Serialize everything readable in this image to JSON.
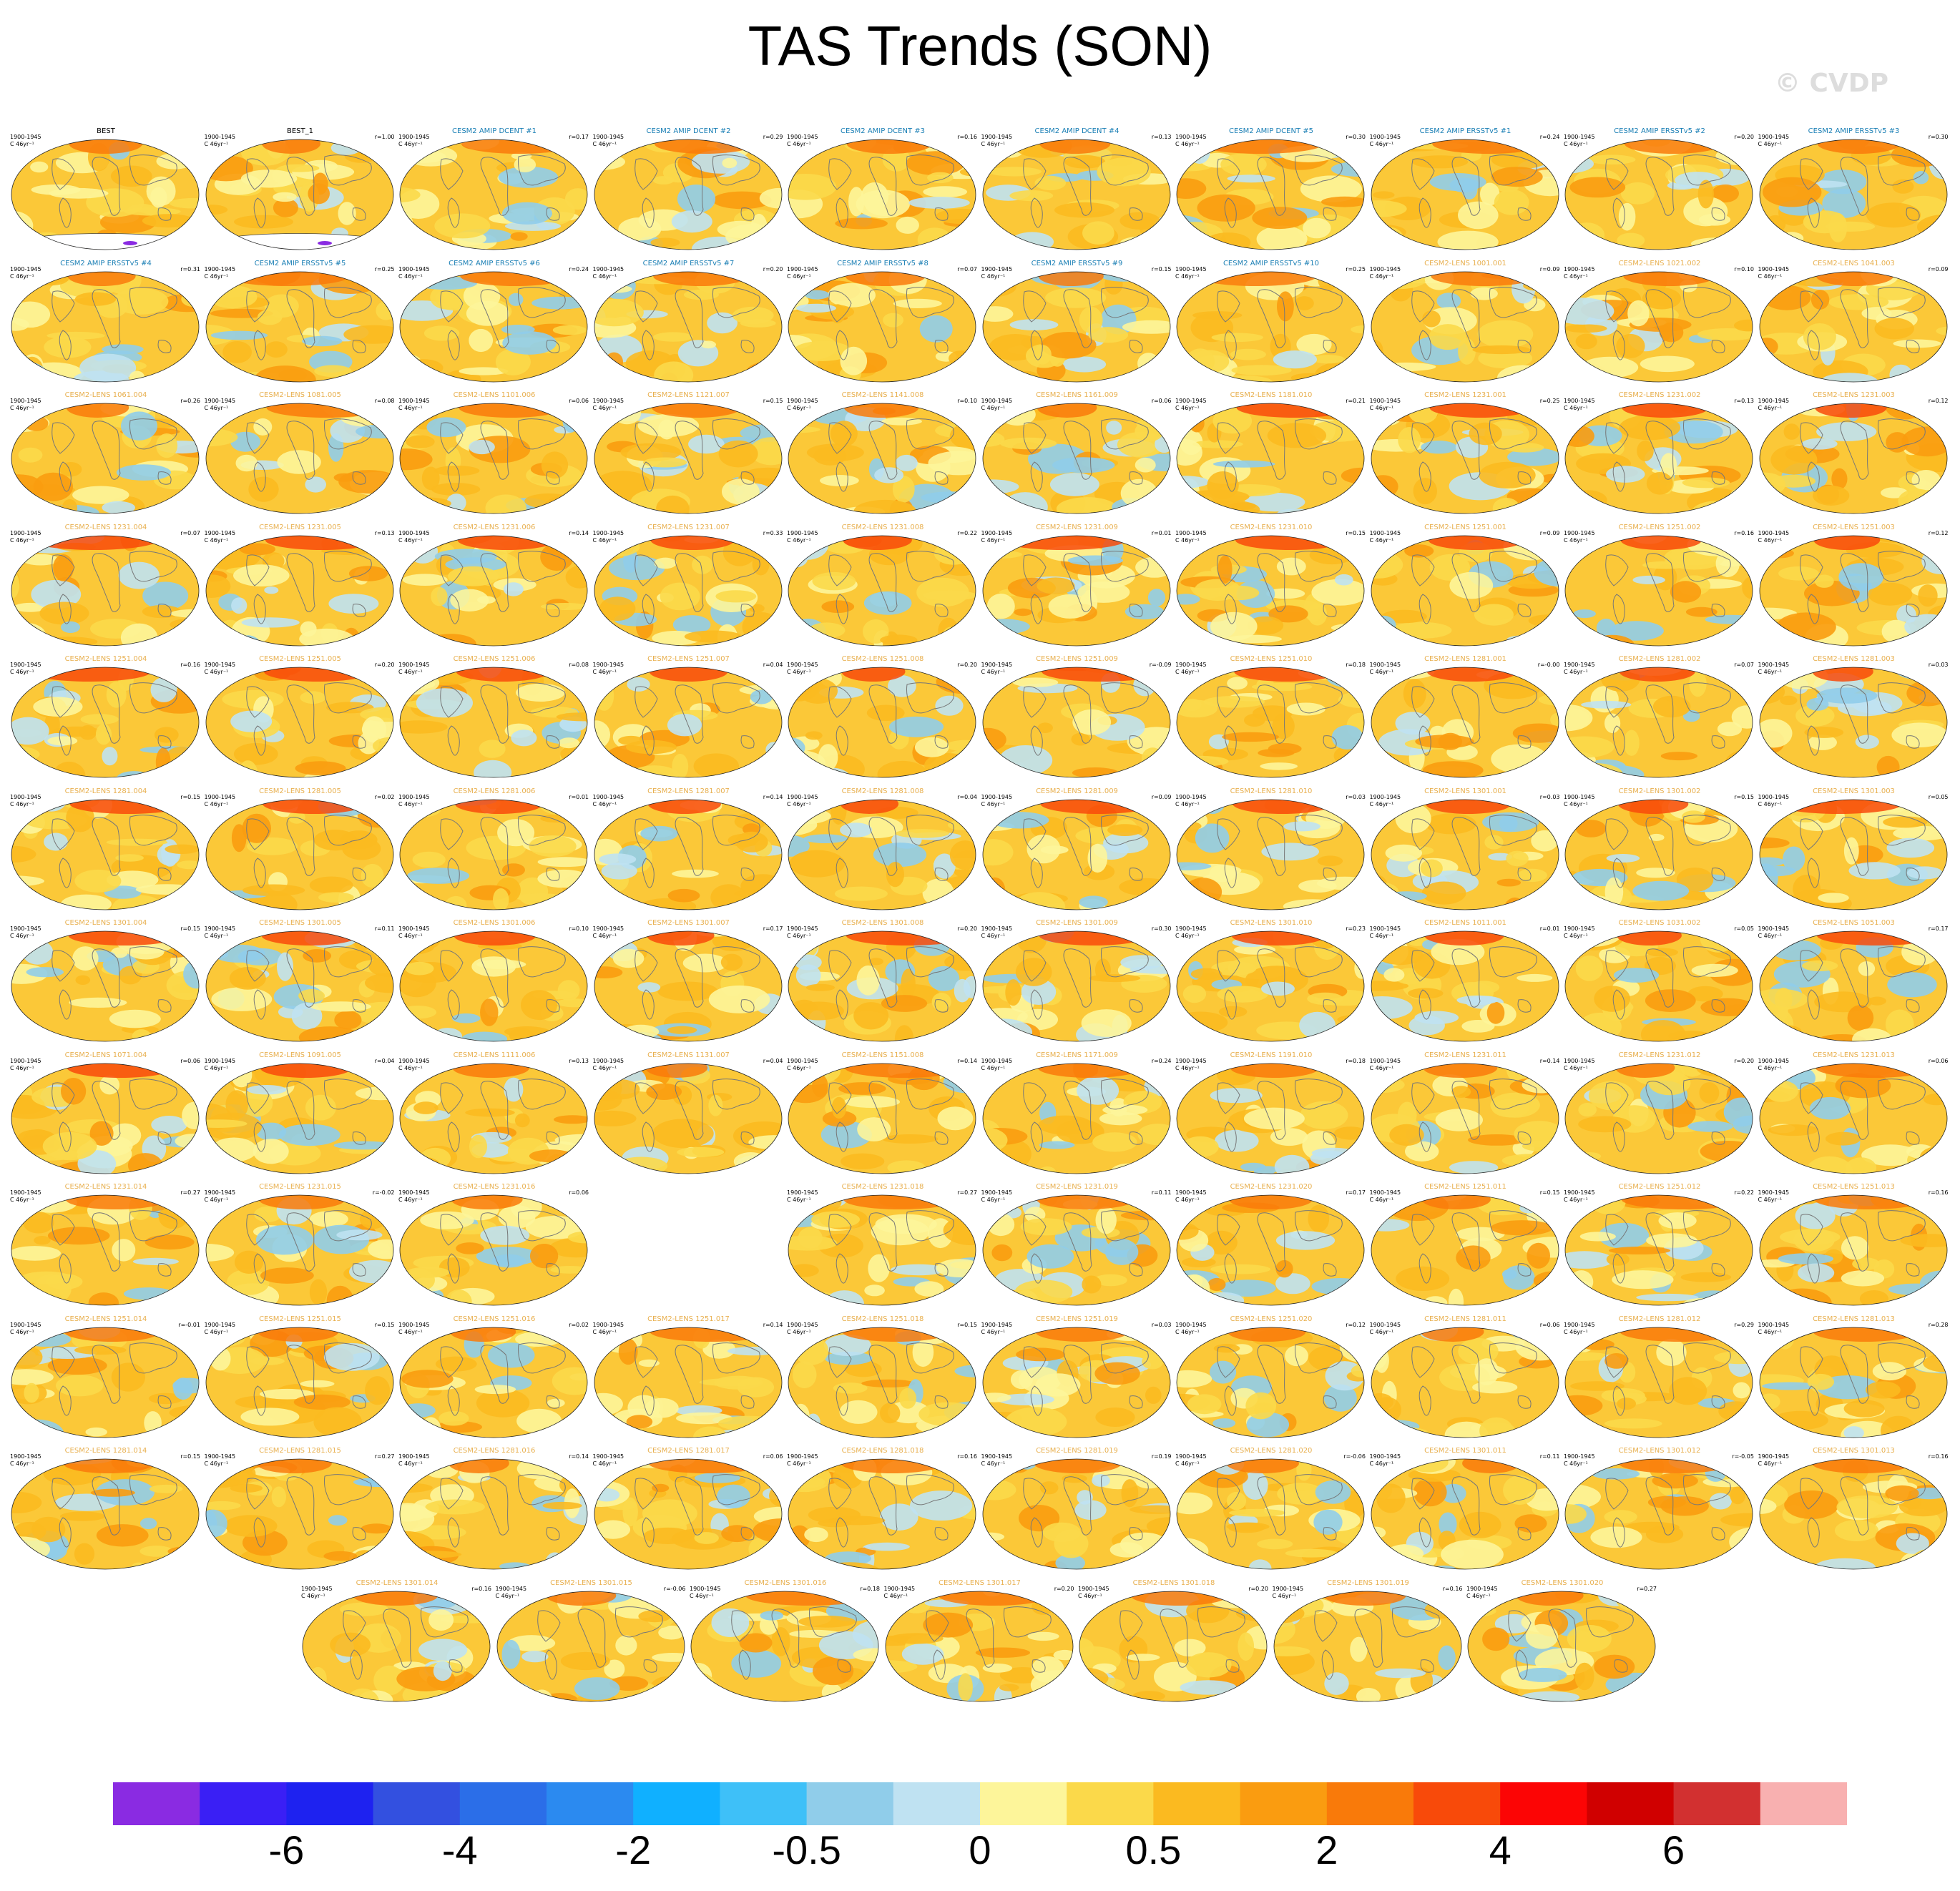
{
  "title": "TAS Trends (SON)",
  "watermark": "© CVDP",
  "panel_dates": "1900-1945\nC 46yr⁻¹",
  "colors": {
    "observation_title": "#000000",
    "amip_title": "#1a7fb5",
    "lens_title": "#e8b050"
  },
  "colorbar": {
    "colors": [
      "#8a2be2",
      "#3a1ff5",
      "#1e22f0",
      "#3350e0",
      "#2b6ee8",
      "#2b8af0",
      "#10b0ff",
      "#3ec0f8",
      "#90cdea",
      "#bfe2f2",
      "#fdf59a",
      "#fbd94a",
      "#fbba20",
      "#fa9c10",
      "#f97a0a",
      "#f84a0a",
      "#fc0505",
      "#d00000",
      "#d23030",
      "#f8b0b0"
    ],
    "tick_labels": [
      "-6",
      "-4",
      "-2",
      "-0.5",
      "0",
      "0.5",
      "2",
      "4",
      "6"
    ],
    "tick_boundary_index": [
      2,
      4,
      6,
      8,
      10,
      12,
      14,
      16,
      18
    ]
  },
  "panels": [
    {
      "title": "BEST",
      "r": "",
      "kind": "obs"
    },
    {
      "title": "BEST_1",
      "r": "r=1.00",
      "kind": "obs"
    },
    {
      "title": "CESM2 AMIP DCENT #1",
      "r": "r=0.17",
      "kind": "amip"
    },
    {
      "title": "CESM2 AMIP DCENT #2",
      "r": "r=0.29",
      "kind": "amip"
    },
    {
      "title": "CESM2 AMIP DCENT #3",
      "r": "r=0.16",
      "kind": "amip"
    },
    {
      "title": "CESM2 AMIP DCENT #4",
      "r": "r=0.13",
      "kind": "amip"
    },
    {
      "title": "CESM2 AMIP DCENT #5",
      "r": "r=0.30",
      "kind": "amip"
    },
    {
      "title": "CESM2 AMIP ERSSTv5 #1",
      "r": "r=0.24",
      "kind": "amip"
    },
    {
      "title": "CESM2 AMIP ERSSTv5 #2",
      "r": "r=0.20",
      "kind": "amip"
    },
    {
      "title": "CESM2 AMIP ERSSTv5 #3",
      "r": "r=0.30",
      "kind": "amip"
    },
    {
      "title": "CESM2 AMIP ERSSTv5 #4",
      "r": "r=0.31",
      "kind": "amip"
    },
    {
      "title": "CESM2 AMIP ERSSTv5 #5",
      "r": "r=0.25",
      "kind": "amip"
    },
    {
      "title": "CESM2 AMIP ERSSTv5 #6",
      "r": "r=0.24",
      "kind": "amip"
    },
    {
      "title": "CESM2 AMIP ERSSTv5 #7",
      "r": "r=0.20",
      "kind": "amip"
    },
    {
      "title": "CESM2 AMIP ERSSTv5 #8",
      "r": "r=0.07",
      "kind": "amip"
    },
    {
      "title": "CESM2 AMIP ERSSTv5 #9",
      "r": "r=0.15",
      "kind": "amip"
    },
    {
      "title": "CESM2 AMIP ERSSTv5 #10",
      "r": "r=0.25",
      "kind": "amip"
    },
    {
      "title": "CESM2-LENS 1001.001",
      "r": "r=0.09",
      "kind": "lens"
    },
    {
      "title": "CESM2-LENS 1021.002",
      "r": "r=0.10",
      "kind": "lens"
    },
    {
      "title": "CESM2-LENS 1041.003",
      "r": "r=0.09",
      "kind": "lens"
    },
    {
      "title": "CESM2-LENS 1061.004",
      "r": "r=0.26",
      "kind": "lens"
    },
    {
      "title": "CESM2-LENS 1081.005",
      "r": "r=0.08",
      "kind": "lens"
    },
    {
      "title": "CESM2-LENS 1101.006",
      "r": "r=0.06",
      "kind": "lens"
    },
    {
      "title": "CESM2-LENS 1121.007",
      "r": "r=0.15",
      "kind": "lens"
    },
    {
      "title": "CESM2-LENS 1141.008",
      "r": "r=0.10",
      "kind": "lens"
    },
    {
      "title": "CESM2-LENS 1161.009",
      "r": "r=0.06",
      "kind": "lens"
    },
    {
      "title": "CESM2-LENS 1181.010",
      "r": "r=0.21",
      "kind": "lens"
    },
    {
      "title": "CESM2-LENS 1231.001",
      "r": "r=0.25",
      "kind": "lens"
    },
    {
      "title": "CESM2-LENS 1231.002",
      "r": "r=0.13",
      "kind": "lens"
    },
    {
      "title": "CESM2-LENS 1231.003",
      "r": "r=0.12",
      "kind": "lens"
    },
    {
      "title": "CESM2-LENS 1231.004",
      "r": "r=0.07",
      "kind": "lens"
    },
    {
      "title": "CESM2-LENS 1231.005",
      "r": "r=0.13",
      "kind": "lens"
    },
    {
      "title": "CESM2-LENS 1231.006",
      "r": "r=0.14",
      "kind": "lens"
    },
    {
      "title": "CESM2-LENS 1231.007",
      "r": "r=0.33",
      "kind": "lens"
    },
    {
      "title": "CESM2-LENS 1231.008",
      "r": "r=0.22",
      "kind": "lens"
    },
    {
      "title": "CESM2-LENS 1231.009",
      "r": "r=0.01",
      "kind": "lens"
    },
    {
      "title": "CESM2-LENS 1231.010",
      "r": "r=0.15",
      "kind": "lens"
    },
    {
      "title": "CESM2-LENS 1251.001",
      "r": "r=0.09",
      "kind": "lens"
    },
    {
      "title": "CESM2-LENS 1251.002",
      "r": "r=0.16",
      "kind": "lens"
    },
    {
      "title": "CESM2-LENS 1251.003",
      "r": "r=0.12",
      "kind": "lens"
    },
    {
      "title": "CESM2-LENS 1251.004",
      "r": "r=0.16",
      "kind": "lens"
    },
    {
      "title": "CESM2-LENS 1251.005",
      "r": "r=0.20",
      "kind": "lens"
    },
    {
      "title": "CESM2-LENS 1251.006",
      "r": "r=0.08",
      "kind": "lens"
    },
    {
      "title": "CESM2-LENS 1251.007",
      "r": "r=0.04",
      "kind": "lens"
    },
    {
      "title": "CESM2-LENS 1251.008",
      "r": "r=0.20",
      "kind": "lens"
    },
    {
      "title": "CESM2-LENS 1251.009",
      "r": "r=-0.09",
      "kind": "lens"
    },
    {
      "title": "CESM2-LENS 1251.010",
      "r": "r=0.18",
      "kind": "lens"
    },
    {
      "title": "CESM2-LENS 1281.001",
      "r": "r=-0.00",
      "kind": "lens"
    },
    {
      "title": "CESM2-LENS 1281.002",
      "r": "r=0.07",
      "kind": "lens"
    },
    {
      "title": "CESM2-LENS 1281.003",
      "r": "r=0.03",
      "kind": "lens"
    },
    {
      "title": "CESM2-LENS 1281.004",
      "r": "r=0.15",
      "kind": "lens"
    },
    {
      "title": "CESM2-LENS 1281.005",
      "r": "r=0.02",
      "kind": "lens"
    },
    {
      "title": "CESM2-LENS 1281.006",
      "r": "r=0.01",
      "kind": "lens"
    },
    {
      "title": "CESM2-LENS 1281.007",
      "r": "r=0.14",
      "kind": "lens"
    },
    {
      "title": "CESM2-LENS 1281.008",
      "r": "r=0.04",
      "kind": "lens"
    },
    {
      "title": "CESM2-LENS 1281.009",
      "r": "r=0.09",
      "kind": "lens"
    },
    {
      "title": "CESM2-LENS 1281.010",
      "r": "r=0.03",
      "kind": "lens"
    },
    {
      "title": "CESM2-LENS 1301.001",
      "r": "r=0.03",
      "kind": "lens"
    },
    {
      "title": "CESM2-LENS 1301.002",
      "r": "r=0.15",
      "kind": "lens"
    },
    {
      "title": "CESM2-LENS 1301.003",
      "r": "r=0.05",
      "kind": "lens"
    },
    {
      "title": "CESM2-LENS 1301.004",
      "r": "r=0.15",
      "kind": "lens"
    },
    {
      "title": "CESM2-LENS 1301.005",
      "r": "r=0.11",
      "kind": "lens"
    },
    {
      "title": "CESM2-LENS 1301.006",
      "r": "r=0.10",
      "kind": "lens"
    },
    {
      "title": "CESM2-LENS 1301.007",
      "r": "r=0.17",
      "kind": "lens"
    },
    {
      "title": "CESM2-LENS 1301.008",
      "r": "r=0.20",
      "kind": "lens"
    },
    {
      "title": "CESM2-LENS 1301.009",
      "r": "r=0.30",
      "kind": "lens"
    },
    {
      "title": "CESM2-LENS 1301.010",
      "r": "r=0.23",
      "kind": "lens"
    },
    {
      "title": "CESM2-LENS 1011.001",
      "r": "r=0.01",
      "kind": "lens"
    },
    {
      "title": "CESM2-LENS 1031.002",
      "r": "r=0.05",
      "kind": "lens"
    },
    {
      "title": "CESM2-LENS 1051.003",
      "r": "r=0.17",
      "kind": "lens"
    },
    {
      "title": "CESM2-LENS 1071.004",
      "r": "r=0.06",
      "kind": "lens"
    },
    {
      "title": "CESM2-LENS 1091.005",
      "r": "r=0.04",
      "kind": "lens"
    },
    {
      "title": "CESM2-LENS 1111.006",
      "r": "r=0.13",
      "kind": "lens"
    },
    {
      "title": "CESM2-LENS 1131.007",
      "r": "r=0.04",
      "kind": "lens"
    },
    {
      "title": "CESM2-LENS 1151.008",
      "r": "r=0.14",
      "kind": "lens"
    },
    {
      "title": "CESM2-LENS 1171.009",
      "r": "r=0.24",
      "kind": "lens"
    },
    {
      "title": "CESM2-LENS 1191.010",
      "r": "r=0.18",
      "kind": "lens"
    },
    {
      "title": "CESM2-LENS 1231.011",
      "r": "r=0.14",
      "kind": "lens"
    },
    {
      "title": "CESM2-LENS 1231.012",
      "r": "r=0.20",
      "kind": "lens"
    },
    {
      "title": "CESM2-LENS 1231.013",
      "r": "r=0.06",
      "kind": "lens"
    },
    {
      "title": "CESM2-LENS 1231.014",
      "r": "r=0.27",
      "kind": "lens"
    },
    {
      "title": "CESM2-LENS 1231.015",
      "r": "r=-0.02",
      "kind": "lens"
    },
    {
      "title": "CESM2-LENS 1231.016",
      "r": "r=0.06",
      "kind": "lens"
    },
    null,
    {
      "title": "CESM2-LENS 1231.018",
      "r": "r=0.27",
      "kind": "lens"
    },
    {
      "title": "CESM2-LENS 1231.019",
      "r": "r=0.11",
      "kind": "lens"
    },
    {
      "title": "CESM2-LENS 1231.020",
      "r": "r=0.17",
      "kind": "lens"
    },
    {
      "title": "CESM2-LENS 1251.011",
      "r": "r=0.15",
      "kind": "lens"
    },
    {
      "title": "CESM2-LENS 1251.012",
      "r": "r=0.22",
      "kind": "lens"
    },
    {
      "title": "CESM2-LENS 1251.013",
      "r": "r=0.16",
      "kind": "lens"
    },
    {
      "title": "CESM2-LENS 1251.014",
      "r": "r=-0.01",
      "kind": "lens"
    },
    {
      "title": "CESM2-LENS 1251.015",
      "r": "r=0.15",
      "kind": "lens"
    },
    {
      "title": "CESM2-LENS 1251.016",
      "r": "r=0.02",
      "kind": "lens"
    },
    {
      "title": "CESM2-LENS 1251.017",
      "r": "r=0.14",
      "kind": "lens"
    },
    {
      "title": "CESM2-LENS 1251.018",
      "r": "r=0.15",
      "kind": "lens"
    },
    {
      "title": "CESM2-LENS 1251.019",
      "r": "r=0.03",
      "kind": "lens"
    },
    {
      "title": "CESM2-LENS 1251.020",
      "r": "r=0.12",
      "kind": "lens"
    },
    {
      "title": "CESM2-LENS 1281.011",
      "r": "r=0.06",
      "kind": "lens"
    },
    {
      "title": "CESM2-LENS 1281.012",
      "r": "r=0.29",
      "kind": "lens"
    },
    {
      "title": "CESM2-LENS 1281.013",
      "r": "r=0.28",
      "kind": "lens"
    },
    {
      "title": "CESM2-LENS 1281.014",
      "r": "r=0.15",
      "kind": "lens"
    },
    {
      "title": "CESM2-LENS 1281.015",
      "r": "r=0.27",
      "kind": "lens"
    },
    {
      "title": "CESM2-LENS 1281.016",
      "r": "r=0.14",
      "kind": "lens"
    },
    {
      "title": "CESM2-LENS 1281.017",
      "r": "r=0.06",
      "kind": "lens"
    },
    {
      "title": "CESM2-LENS 1281.018",
      "r": "r=0.16",
      "kind": "lens"
    },
    {
      "title": "CESM2-LENS 1281.019",
      "r": "r=0.19",
      "kind": "lens"
    },
    {
      "title": "CESM2-LENS 1281.020",
      "r": "r=-0.06",
      "kind": "lens"
    },
    {
      "title": "CESM2-LENS 1301.011",
      "r": "r=0.11",
      "kind": "lens"
    },
    {
      "title": "CESM2-LENS 1301.012",
      "r": "r=-0.05",
      "kind": "lens"
    },
    {
      "title": "CESM2-LENS 1301.013",
      "r": "r=0.16",
      "kind": "lens"
    },
    {
      "title": "CESM2-LENS 1301.014",
      "r": "r=0.16",
      "kind": "lens"
    },
    {
      "title": "CESM2-LENS 1301.015",
      "r": "r=-0.06",
      "kind": "lens"
    },
    {
      "title": "CESM2-LENS 1301.016",
      "r": "r=0.18",
      "kind": "lens"
    },
    {
      "title": "CESM2-LENS 1301.017",
      "r": "r=0.20",
      "kind": "lens"
    },
    {
      "title": "CESM2-LENS 1301.018",
      "r": "r=0.20",
      "kind": "lens"
    },
    {
      "title": "CESM2-LENS 1301.019",
      "r": "r=0.16",
      "kind": "lens"
    },
    {
      "title": "CESM2-LENS 1301.020",
      "r": "r=0.27",
      "kind": "lens"
    }
  ]
}
